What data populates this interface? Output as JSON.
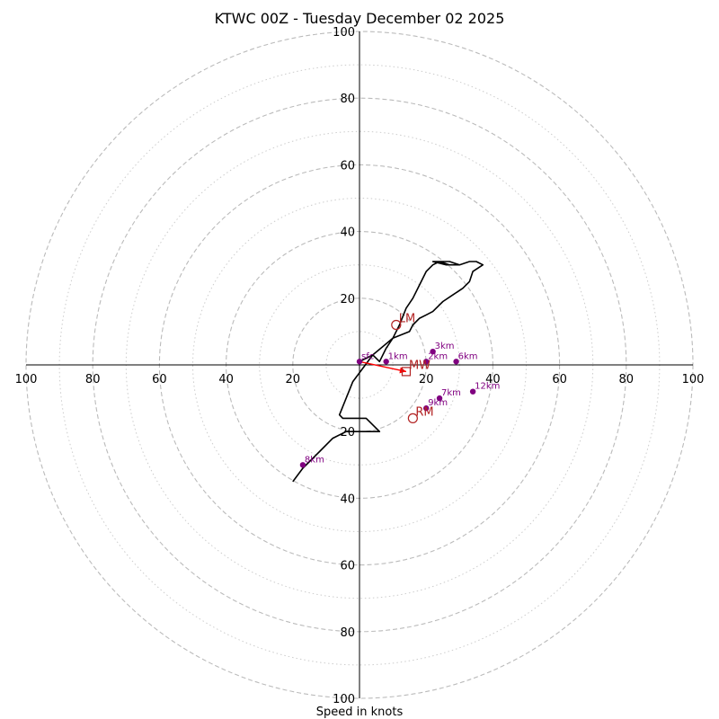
{
  "chart_data": {
    "type": "line",
    "title": "KTWC 00Z - Tuesday December 02 2025",
    "xlabel": "Speed in knots",
    "rmax": 100,
    "ring_major": [
      20,
      40,
      60,
      80,
      100
    ],
    "ring_minor": [
      10,
      30,
      50,
      70,
      90
    ],
    "axis_tick_values": [
      20,
      40,
      60,
      80,
      100
    ],
    "axis_tick_labels": [
      "20",
      "40",
      "60",
      "80",
      "100"
    ],
    "colors": {
      "trace": "#000000",
      "height_marker": "#800080",
      "storm_motion": "#b22222",
      "shear_arrow": "#ff0000",
      "ring_major": "#bbbbbb",
      "ring_minor": "#cccccc"
    },
    "series": [
      {
        "name": "hodograph",
        "u": [
          0,
          2,
          4,
          6,
          8,
          10,
          12,
          14,
          16,
          18,
          20,
          22,
          24,
          26,
          27,
          30,
          27,
          24,
          22,
          26,
          30,
          33,
          35,
          37,
          34,
          33,
          31,
          28,
          25,
          22,
          20,
          18,
          16,
          15,
          10,
          4,
          -2,
          -6,
          -5,
          2,
          6,
          -4,
          -8,
          -12,
          -17,
          -20
        ],
        "v": [
          -1,
          -2,
          -3,
          -1,
          -5,
          -8,
          -12,
          -17,
          -20,
          -24,
          -28,
          -30,
          -31,
          -31,
          -31,
          -30,
          -30,
          -31,
          -31,
          -30,
          -30,
          -31,
          -31,
          -30,
          -28,
          -25,
          -23,
          -21,
          -19,
          -16,
          -15,
          -14,
          -12,
          -10,
          -8,
          -3,
          5,
          15,
          16,
          16,
          20,
          20,
          22,
          26,
          31,
          35
        ]
      }
    ],
    "height_markers": [
      {
        "label": "sfc",
        "u": 0,
        "v": -1
      },
      {
        "label": "1km",
        "u": 8,
        "v": -1
      },
      {
        "label": "2km",
        "u": 20,
        "v": -1
      },
      {
        "label": "3km",
        "u": 22,
        "v": -4
      },
      {
        "label": "6km",
        "u": 29,
        "v": -1
      },
      {
        "label": "7km",
        "u": 24,
        "v": 10
      },
      {
        "label": "9km",
        "u": 20,
        "v": 13
      },
      {
        "label": "12km",
        "u": 34,
        "v": 8
      },
      {
        "label": "8km",
        "u": -17,
        "v": 30
      }
    ],
    "storm_motion": [
      {
        "label": "LM",
        "u": 11,
        "v": -12
      },
      {
        "label": "RM",
        "u": 16,
        "v": 16
      },
      {
        "label": "MW",
        "u": 14,
        "v": 2
      }
    ],
    "shear_vector": {
      "u0": 0,
      "v0": -1,
      "u1": 14,
      "v1": 2
    }
  }
}
